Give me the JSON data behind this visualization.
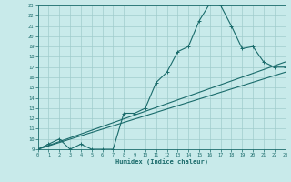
{
  "xlabel": "Humidex (Indice chaleur)",
  "ylabel": "",
  "bg_color": "#c8eaea",
  "grid_color": "#a0cccc",
  "line_color": "#1a6b6b",
  "xmin": 0,
  "xmax": 23,
  "ymin": 9,
  "ymax": 23,
  "line1_x": [
    0,
    1,
    2,
    3,
    4,
    5,
    6,
    7,
    8,
    9,
    10,
    11,
    12,
    13,
    14,
    15,
    16,
    17,
    18,
    19,
    20,
    21,
    22,
    23
  ],
  "line1_y": [
    9,
    9.5,
    10,
    9,
    9.5,
    9,
    9,
    9,
    12.5,
    12.5,
    13,
    15.5,
    16.5,
    18.5,
    19,
    21.5,
    23.2,
    23,
    21,
    18.8,
    19,
    17.5,
    17,
    17
  ],
  "line2_x": [
    0,
    23
  ],
  "line2_y": [
    9,
    17.5
  ],
  "line3_x": [
    0,
    23
  ],
  "line3_y": [
    9,
    16.5
  ],
  "xticks": [
    0,
    1,
    2,
    3,
    4,
    5,
    6,
    7,
    8,
    9,
    10,
    11,
    12,
    13,
    14,
    15,
    16,
    17,
    18,
    19,
    20,
    21,
    22,
    23
  ],
  "yticks": [
    9,
    10,
    11,
    12,
    13,
    14,
    15,
    16,
    17,
    18,
    19,
    20,
    21,
    22,
    23
  ]
}
